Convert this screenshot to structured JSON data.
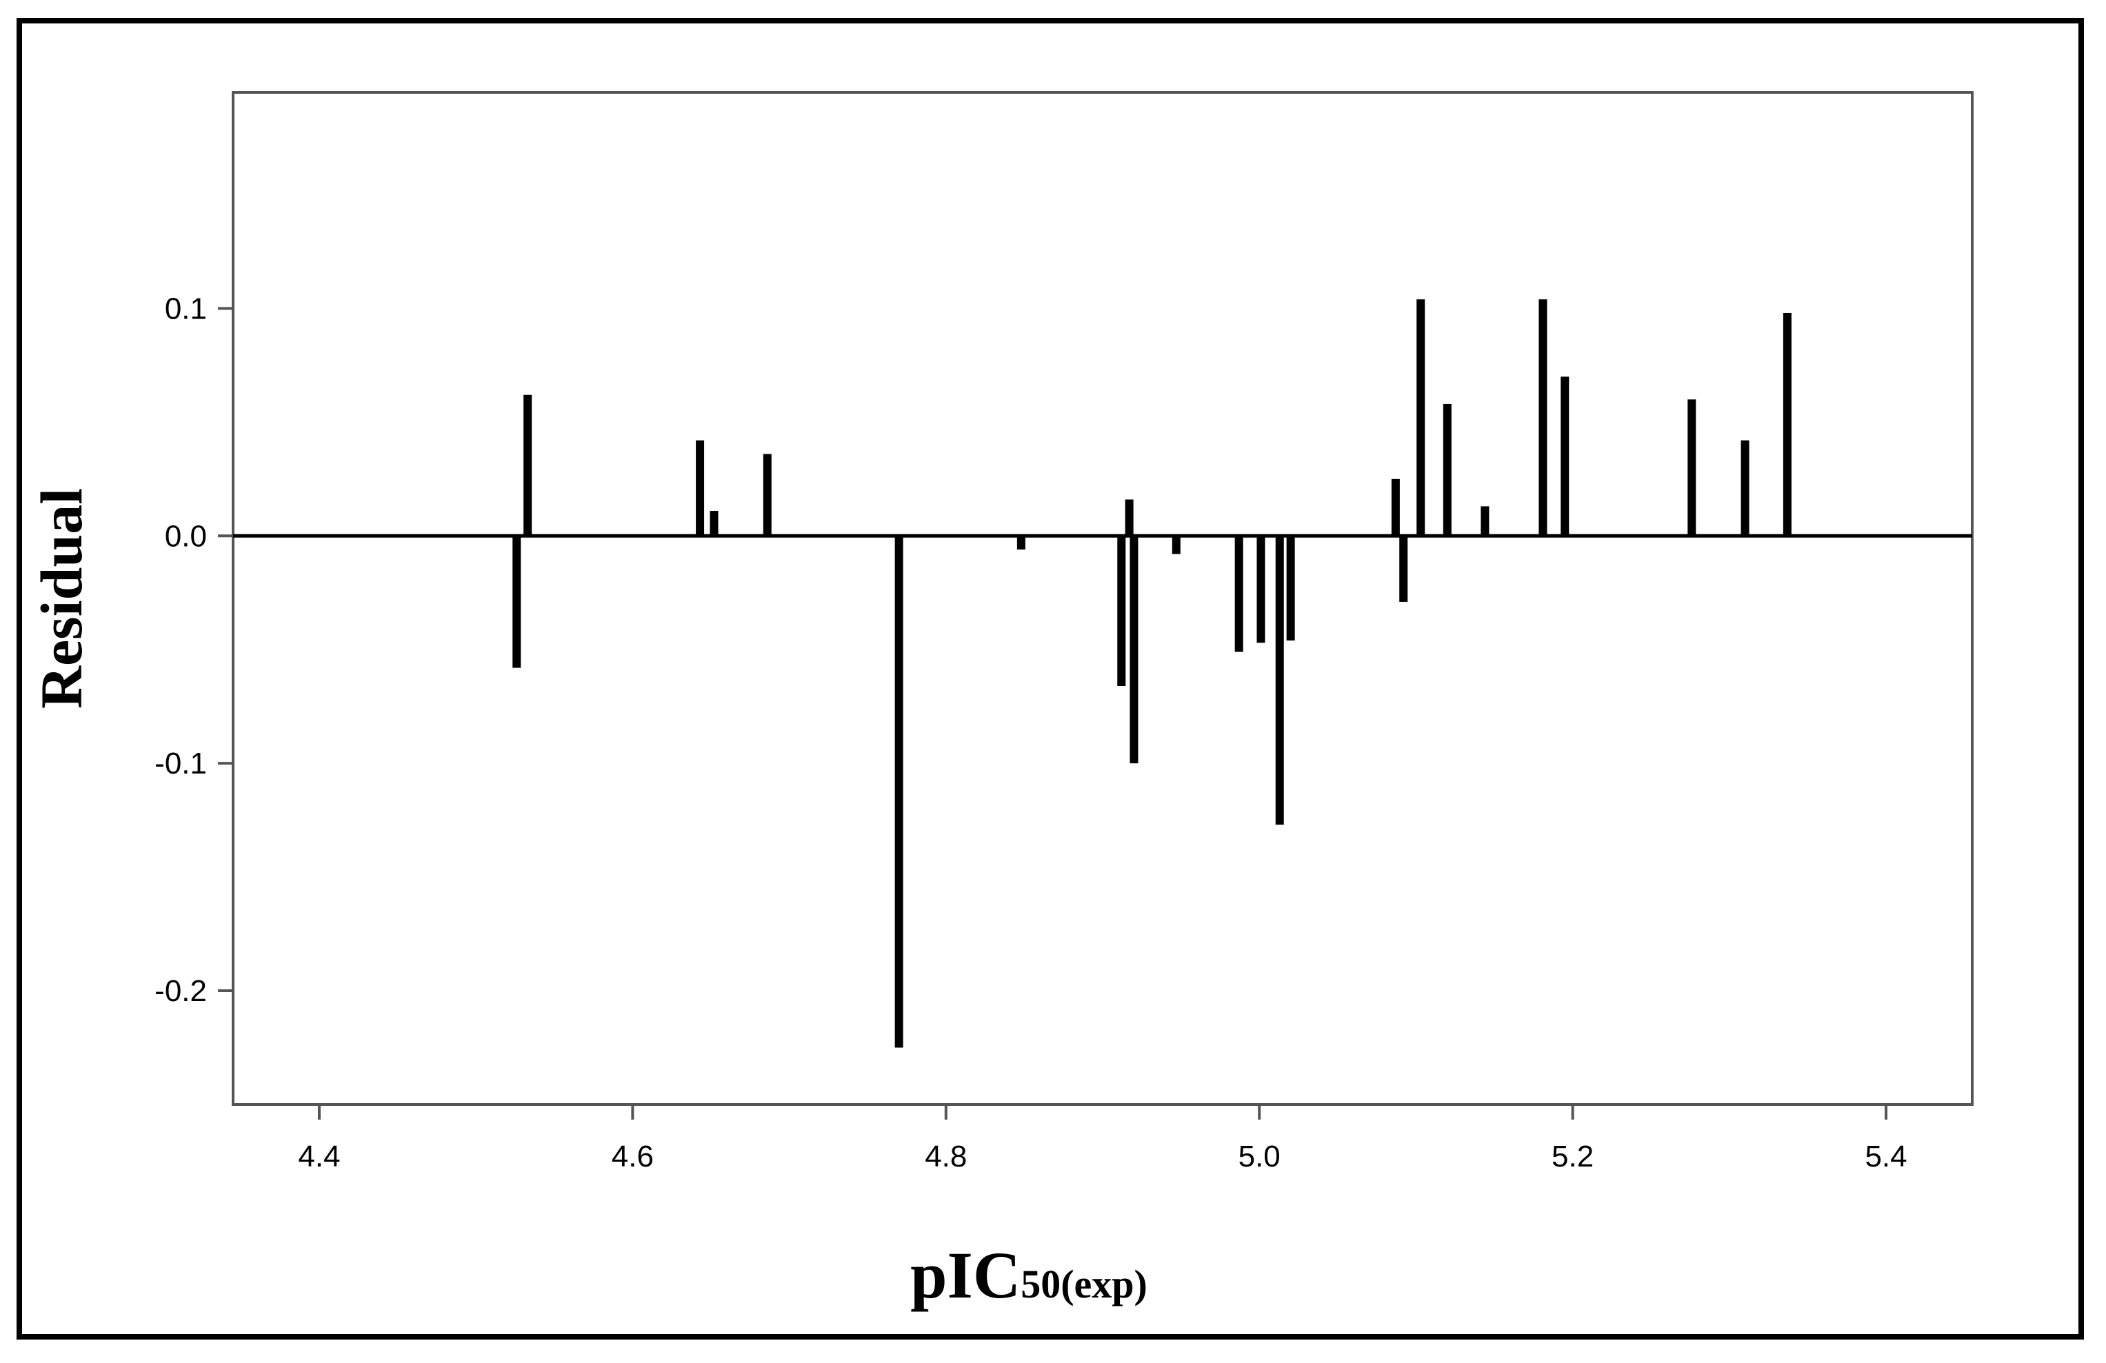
{
  "chart_data": {
    "type": "bar",
    "ylabel": "Residual",
    "xlabel_main": "pIC",
    "xlabel_sub": "50(exp)",
    "xlim": [
      4.345,
      5.455
    ],
    "ylim": [
      -0.25,
      0.195
    ],
    "x_ticks": [
      {
        "value": 4.4,
        "label": "4.4"
      },
      {
        "value": 4.6,
        "label": "4.6"
      },
      {
        "value": 4.8,
        "label": "4.8"
      },
      {
        "value": 5.0,
        "label": "5.0"
      },
      {
        "value": 5.2,
        "label": "5.2"
      },
      {
        "value": 5.4,
        "label": "5.4"
      }
    ],
    "y_ticks": [
      {
        "value": 0.1,
        "label": "0.1"
      },
      {
        "value": 0.0,
        "label": "0.0"
      },
      {
        "value": -0.1,
        "label": "-0.1"
      },
      {
        "value": -0.2,
        "label": "-0.2"
      }
    ],
    "grid": false,
    "points": [
      {
        "x": 4.526,
        "y": -0.058
      },
      {
        "x": 4.533,
        "y": 0.062
      },
      {
        "x": 4.643,
        "y": 0.042
      },
      {
        "x": 4.652,
        "y": 0.011
      },
      {
        "x": 4.686,
        "y": 0.036
      },
      {
        "x": 4.77,
        "y": -0.225
      },
      {
        "x": 4.848,
        "y": -0.006
      },
      {
        "x": 4.912,
        "y": -0.066
      },
      {
        "x": 4.917,
        "y": 0.016
      },
      {
        "x": 4.92,
        "y": -0.1
      },
      {
        "x": 4.947,
        "y": -0.008
      },
      {
        "x": 4.987,
        "y": -0.051
      },
      {
        "x": 5.001,
        "y": -0.047
      },
      {
        "x": 5.013,
        "y": -0.127
      },
      {
        "x": 5.02,
        "y": -0.046
      },
      {
        "x": 5.087,
        "y": 0.025
      },
      {
        "x": 5.092,
        "y": -0.029
      },
      {
        "x": 5.103,
        "y": 0.104
      },
      {
        "x": 5.12,
        "y": 0.058
      },
      {
        "x": 5.144,
        "y": 0.013
      },
      {
        "x": 5.181,
        "y": 0.104
      },
      {
        "x": 5.195,
        "y": 0.07
      },
      {
        "x": 5.276,
        "y": 0.06
      },
      {
        "x": 5.31,
        "y": 0.042
      },
      {
        "x": 5.337,
        "y": 0.098
      }
    ]
  }
}
